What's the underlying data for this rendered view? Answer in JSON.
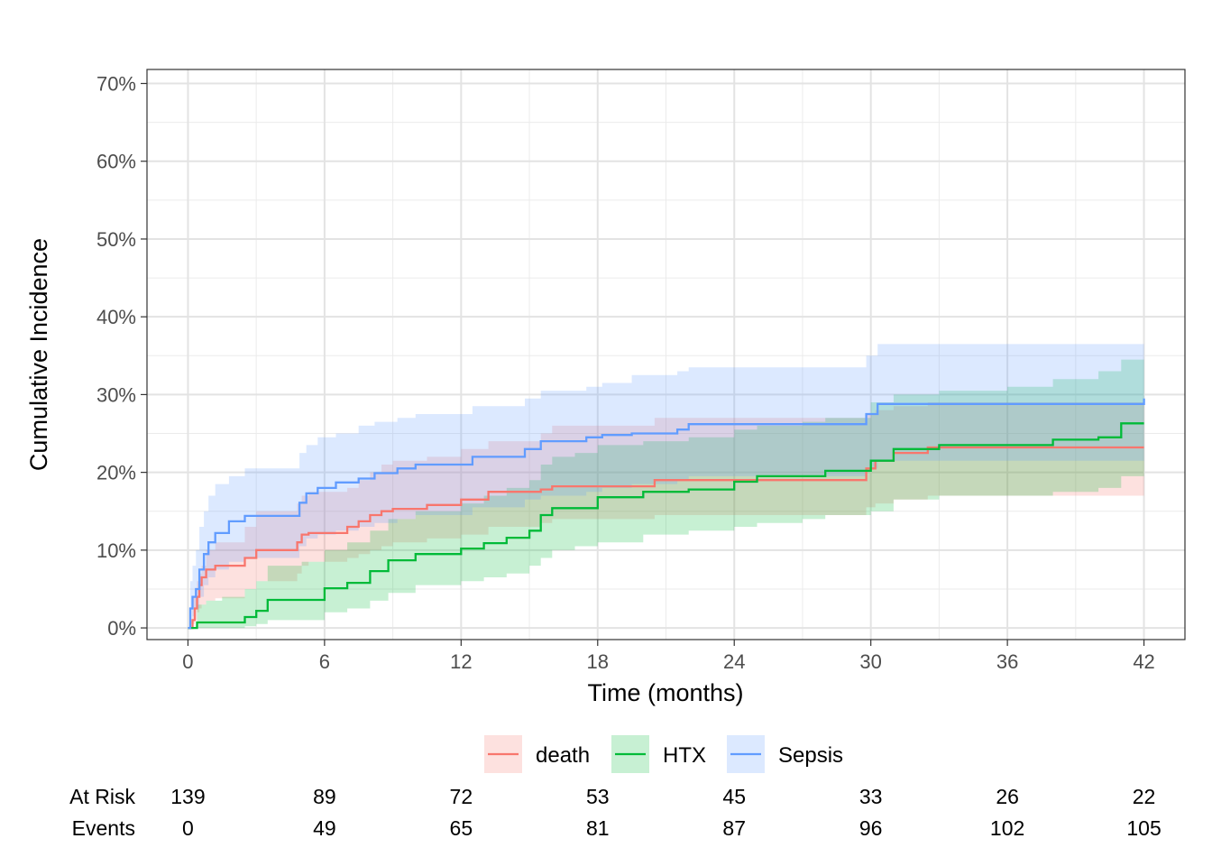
{
  "chart_data": {
    "type": "line",
    "chart_subtype": "cumulative-incidence-step",
    "xlabel": "Time (months)",
    "ylabel": "Cumulative Incidence",
    "xlim": [
      -1.8,
      43.8
    ],
    "ylim": [
      -1.5,
      71.8
    ],
    "x_ticks": [
      0,
      6,
      12,
      18,
      24,
      30,
      36,
      42
    ],
    "x_tick_labels": [
      "0",
      "6",
      "12",
      "18",
      "24",
      "30",
      "36",
      "42"
    ],
    "y_ticks": [
      0,
      10,
      20,
      30,
      40,
      50,
      60,
      70
    ],
    "y_tick_labels": [
      "0%",
      "10%",
      "20%",
      "30%",
      "40%",
      "50%",
      "60%",
      "70%"
    ],
    "grid": true,
    "legend_position": "bottom",
    "colors": {
      "death": "#F8766D",
      "HTX": "#00BA38",
      "Sepsis": "#619CFF"
    },
    "series": [
      {
        "name": "death",
        "color": "#F8766D",
        "x": [
          0,
          0.2,
          0.3,
          0.4,
          0.5,
          0.6,
          0.8,
          1.2,
          2.5,
          3,
          4.8,
          5,
          5.3,
          7,
          7.5,
          8,
          8.5,
          9,
          10.5,
          12,
          13.2,
          15.5,
          16,
          20.5,
          29.8,
          30.2,
          31,
          32.5,
          42
        ],
        "y": [
          0,
          1,
          2.5,
          4,
          5.5,
          6.5,
          7.5,
          8,
          9,
          10,
          11,
          12,
          12.2,
          13,
          13.7,
          14.5,
          15,
          15.3,
          15.8,
          16.5,
          17.5,
          17.8,
          18.2,
          19,
          20.5,
          21.5,
          22.5,
          23.2,
          23.2
        ],
        "lower": [
          0,
          0.5,
          1,
          2,
          2.5,
          3,
          3.5,
          3.8,
          5,
          6,
          7,
          8,
          8.5,
          9,
          9.5,
          10,
          10.5,
          11,
          11.5,
          12,
          13,
          13.5,
          14,
          14.5,
          15.5,
          16,
          16.5,
          17,
          17
        ],
        "upper": [
          0,
          4,
          5,
          6,
          7,
          8,
          10,
          11,
          13,
          15,
          16,
          17,
          17.5,
          18,
          19,
          20,
          21,
          21.5,
          22,
          23,
          24,
          25,
          26,
          27,
          27.5,
          28,
          28.5,
          29,
          30
        ]
      },
      {
        "name": "HTX",
        "color": "#00BA38",
        "x": [
          0,
          0.4,
          0.8,
          1.5,
          2.5,
          3,
          3.5,
          5,
          6,
          7,
          8,
          8.8,
          10,
          12,
          13,
          14,
          15,
          15.5,
          16,
          17,
          18,
          20,
          22,
          24,
          25,
          27,
          28,
          30,
          31,
          33,
          36,
          38,
          40,
          41,
          42
        ],
        "y": [
          0,
          0.7,
          0.7,
          0.7,
          1.4,
          2.2,
          3.6,
          3.6,
          5.1,
          5.8,
          7.3,
          8.7,
          9.5,
          10.2,
          10.9,
          11.6,
          12.5,
          14.5,
          15.4,
          15.4,
          16.8,
          17.5,
          17.8,
          18.8,
          19.5,
          19.5,
          20.2,
          21.5,
          23,
          23.5,
          23.5,
          24.2,
          24.5,
          26.3,
          26.3
        ],
        "lower": [
          0,
          0,
          0,
          0,
          0.2,
          0.5,
          1,
          1,
          2,
          2.5,
          3.5,
          4.5,
          5.5,
          6,
          6.5,
          7,
          8,
          9,
          10,
          10.5,
          11,
          12,
          12.5,
          13,
          13.5,
          14,
          14.5,
          15,
          16.5,
          17,
          17,
          17.5,
          18,
          19.5,
          19.5
        ],
        "upper": [
          0,
          3,
          3.5,
          4,
          5,
          6,
          8,
          8.5,
          10,
          11,
          12.5,
          14,
          15,
          16,
          17,
          18,
          19,
          21,
          22,
          22.5,
          23.5,
          24,
          24.5,
          25.5,
          26,
          26.5,
          27,
          29,
          30,
          30.5,
          31,
          32,
          33,
          34.5,
          34.5
        ]
      },
      {
        "name": "Sepsis",
        "color": "#619CFF",
        "x": [
          0,
          0.1,
          0.2,
          0.35,
          0.5,
          0.7,
          0.9,
          1.2,
          1.8,
          2.5,
          4.9,
          5.2,
          5.7,
          6.5,
          7.5,
          8.2,
          9.2,
          10,
          12.5,
          14.8,
          15.5,
          17.5,
          18.2,
          19.5,
          21.5,
          22,
          29.8,
          30.3,
          42
        ],
        "y": [
          0,
          2.5,
          4,
          5,
          7.5,
          9.5,
          11,
          12.2,
          13.7,
          14.4,
          16.1,
          17.3,
          18,
          18.7,
          19.2,
          19.9,
          20.5,
          21,
          22,
          23,
          24,
          24.5,
          24.8,
          25,
          25.5,
          26.2,
          27.5,
          28.8,
          29.5
        ],
        "lower": [
          0,
          0.5,
          1.5,
          2.5,
          4,
          5.5,
          6.5,
          7.5,
          8.5,
          9,
          10.5,
          11.5,
          12,
          12.5,
          13,
          13.5,
          14,
          14.5,
          15.5,
          16.5,
          17,
          17.5,
          18,
          18.5,
          19,
          19.5,
          20.5,
          21.5,
          22
        ],
        "upper": [
          0,
          6,
          8,
          10,
          13,
          15,
          17,
          18.5,
          19.5,
          20.5,
          22.5,
          23.5,
          24.5,
          25,
          26,
          26.5,
          27,
          27.5,
          28.5,
          29.5,
          30.5,
          31,
          31.5,
          32.5,
          33,
          33.5,
          35,
          36.5,
          36.5
        ]
      }
    ]
  },
  "legend": {
    "items": [
      {
        "name": "death",
        "label": "death"
      },
      {
        "name": "htx",
        "label": "HTX"
      },
      {
        "name": "sepsis",
        "label": "Sepsis"
      }
    ]
  },
  "risk_table": {
    "at_risk_label": "At Risk",
    "events_label": "Events",
    "times": [
      0,
      6,
      12,
      18,
      24,
      30,
      36,
      42
    ],
    "at_risk": [
      "139",
      "89",
      "72",
      "53",
      "45",
      "33",
      "26",
      "22"
    ],
    "events": [
      "0",
      "49",
      "65",
      "81",
      "87",
      "96",
      "102",
      "105"
    ]
  }
}
